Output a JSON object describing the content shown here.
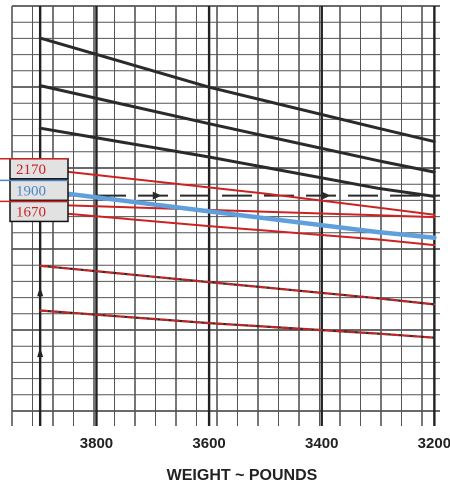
{
  "chart_data": {
    "type": "line",
    "xlabel": "WEIGHT ~ POUNDS",
    "ylabel": "",
    "title": "",
    "x_reversed": true,
    "xlim": [
      3950,
      3190
    ],
    "ylim": [
      0,
      100
    ],
    "x_ticks": [
      {
        "value": 3800,
        "label": "3800"
      },
      {
        "value": 3600,
        "label": "3600"
      },
      {
        "value": 3400,
        "label": "3400"
      },
      {
        "value": 3200,
        "label": "3200"
      }
    ],
    "grid": true,
    "series": [
      {
        "kind": "guide",
        "color": "#2a2a2a",
        "style": "solid",
        "points": [
          [
            3900,
            92.1
          ],
          [
            3600,
            80.0
          ],
          [
            3300,
            69.9
          ],
          [
            3200,
            66.6
          ]
        ]
      },
      {
        "kind": "guide",
        "color": "#2a2a2a",
        "style": "solid",
        "points": [
          [
            3900,
            80.4
          ],
          [
            3600,
            71.0
          ],
          [
            3300,
            61.9
          ],
          [
            3200,
            59.1
          ]
        ]
      },
      {
        "kind": "guide",
        "color": "#2a2a2a",
        "style": "solid",
        "points": [
          [
            3900,
            69.9
          ],
          [
            3600,
            62.8
          ],
          [
            3300,
            55.1
          ],
          [
            3200,
            53.1
          ]
        ]
      },
      {
        "kind": "guide-red",
        "color": "#cc2222",
        "style": "solid",
        "points": [
          [
            3900,
            59.9
          ],
          [
            3500,
            53.8
          ],
          [
            3200,
            48.6
          ]
        ]
      },
      {
        "kind": "guide-red",
        "color": "#cc2222",
        "style": "solid",
        "points": [
          [
            3900,
            51.1
          ],
          [
            3200,
            48.0
          ]
        ]
      },
      {
        "kind": "guide-red",
        "color": "#cc2222",
        "style": "solid",
        "points": [
          [
            3900,
            49.4
          ],
          [
            3600,
            45.8
          ],
          [
            3300,
            42.5
          ],
          [
            3200,
            41.1
          ]
        ]
      },
      {
        "kind": "guide-red",
        "color": "#cc2222",
        "style": "dashed",
        "points": [
          [
            3900,
            36.0
          ],
          [
            3600,
            32.0
          ],
          [
            3300,
            28.0
          ],
          [
            3200,
            26.5
          ]
        ]
      },
      {
        "kind": "guide-red",
        "color": "#cc2222",
        "style": "dashed",
        "points": [
          [
            3900,
            25.0
          ],
          [
            3600,
            21.9
          ],
          [
            3300,
            19.3
          ],
          [
            3200,
            18.3
          ]
        ]
      },
      {
        "kind": "result",
        "color": "#5fa0dc",
        "style": "solid",
        "points": [
          [
            3900,
            54.6
          ],
          [
            3600,
            49.4
          ],
          [
            3300,
            44.3
          ],
          [
            3200,
            42.9
          ]
        ]
      }
    ],
    "arrows": [
      {
        "y": 53.3,
        "from": 3950,
        "to": 3190,
        "color": "#2a2a2a"
      }
    ],
    "callouts": [
      {
        "label": "2170",
        "color": "#cc2222",
        "y": 59.9
      },
      {
        "label": "1900",
        "color": "#4a86c8",
        "y": 54.6
      },
      {
        "label": "1670",
        "color": "#cc2222",
        "y": 49.4
      }
    ],
    "colors": {
      "grid_major": "#222222",
      "grid_minor": "#555555",
      "guide": "#2a2a2a",
      "red": "#cc2222",
      "blue": "#5fa0dc",
      "callout_bg": "#e2e2e2"
    }
  }
}
